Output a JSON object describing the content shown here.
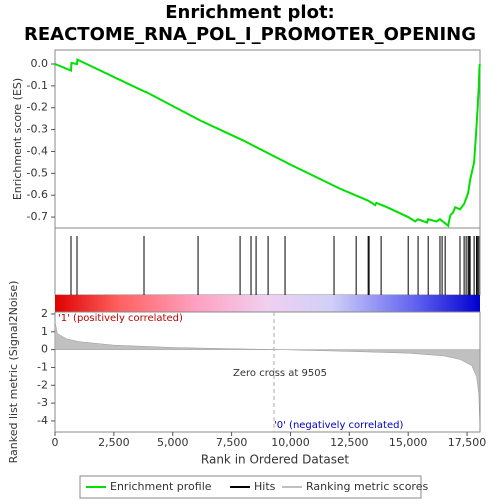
{
  "chart_data": [
    {
      "type": "line",
      "title": "Enrichment plot:",
      "subtitle": "REACTOME_RNA_POL_I_PROMOTER_OPENING",
      "ylabel": "Enrichment score (ES)",
      "xlim": [
        0,
        18050
      ],
      "ylim": [
        -0.75,
        0.064
      ],
      "yticks": [
        {
          "value": 0,
          "label": "0.0"
        },
        -0.1,
        -0.2,
        -0.3,
        -0.4,
        -0.5,
        -0.6,
        -0.7
      ],
      "series": [
        {
          "name": "Enrichment profile",
          "color": "#00e000",
          "x": [
            0,
            680,
            700,
            935,
            950,
            3780,
            3900,
            6200,
            8000,
            10000,
            12100,
            13300,
            13600,
            13650,
            14100,
            15000,
            15300,
            15420,
            15800,
            15850,
            16200,
            16350,
            16700,
            16750,
            16800,
            16900,
            17000,
            17200,
            17375,
            17460,
            17545,
            17590,
            17630,
            17800,
            17850,
            17900,
            17950,
            18000,
            18020,
            18040
          ],
          "values": [
            0,
            -0.03,
            0.005,
            0,
            0.02,
            -0.125,
            -0.13,
            -0.26,
            -0.35,
            -0.46,
            -0.57,
            -0.625,
            -0.645,
            -0.635,
            -0.655,
            -0.7,
            -0.72,
            -0.71,
            -0.725,
            -0.71,
            -0.72,
            -0.71,
            -0.74,
            -0.71,
            -0.69,
            -0.68,
            -0.655,
            -0.665,
            -0.64,
            -0.615,
            -0.59,
            -0.56,
            -0.53,
            -0.45,
            -0.37,
            -0.29,
            -0.2,
            -0.1,
            -0.03,
            0
          ]
        },
        {
          "name": "Hits",
          "color": "#000000",
          "x": [
            680,
            935,
            3780,
            6075,
            7860,
            8325,
            8540,
            9050,
            9770,
            11850,
            12790,
            13300,
            13340,
            13850,
            15000,
            15420,
            15850,
            16350,
            16440,
            16570,
            17200,
            17375,
            17460,
            17545,
            17590,
            17630,
            17800,
            17900,
            17950,
            18000
          ]
        }
      ]
    },
    {
      "type": "area",
      "ylabel": "Ranked list metric (Signal2Noise)",
      "xlabel": "Rank in Ordered Dataset",
      "xlim": [
        0,
        18050
      ],
      "xticks": [
        0,
        {
          "value": 2500,
          "label": "2,500"
        },
        {
          "value": 5000,
          "label": "5,000"
        },
        {
          "value": 7500,
          "label": "7,500"
        },
        {
          "value": 10000,
          "label": "10,000"
        },
        {
          "value": 12500,
          "label": "12,500"
        },
        {
          "value": 15000,
          "label": "15,000"
        },
        {
          "value": 17500,
          "label": "17,500"
        }
      ],
      "ylim": [
        -4.62,
        2.11
      ],
      "yticks": [
        2,
        1,
        0,
        -1,
        -2,
        -3,
        -4
      ],
      "annotations": [
        "'1' (positively correlated)",
        "Zero cross at 9505",
        "'0' (negatively correlated)"
      ],
      "series": [
        {
          "name": "Ranking metric scores",
          "color": "#c0c0c0",
          "x": [
            0,
            100,
            500,
            1000,
            2500,
            5000,
            7500,
            9505,
            12500,
            15000,
            16500,
            17200,
            17700,
            17900,
            18000,
            18040
          ],
          "values": [
            1.6,
            0.9,
            0.6,
            0.45,
            0.25,
            0.12,
            0.05,
            0,
            -0.1,
            -0.2,
            -0.35,
            -0.55,
            -0.9,
            -1.5,
            -2.5,
            -4.3
          ]
        }
      ]
    }
  ]
}
